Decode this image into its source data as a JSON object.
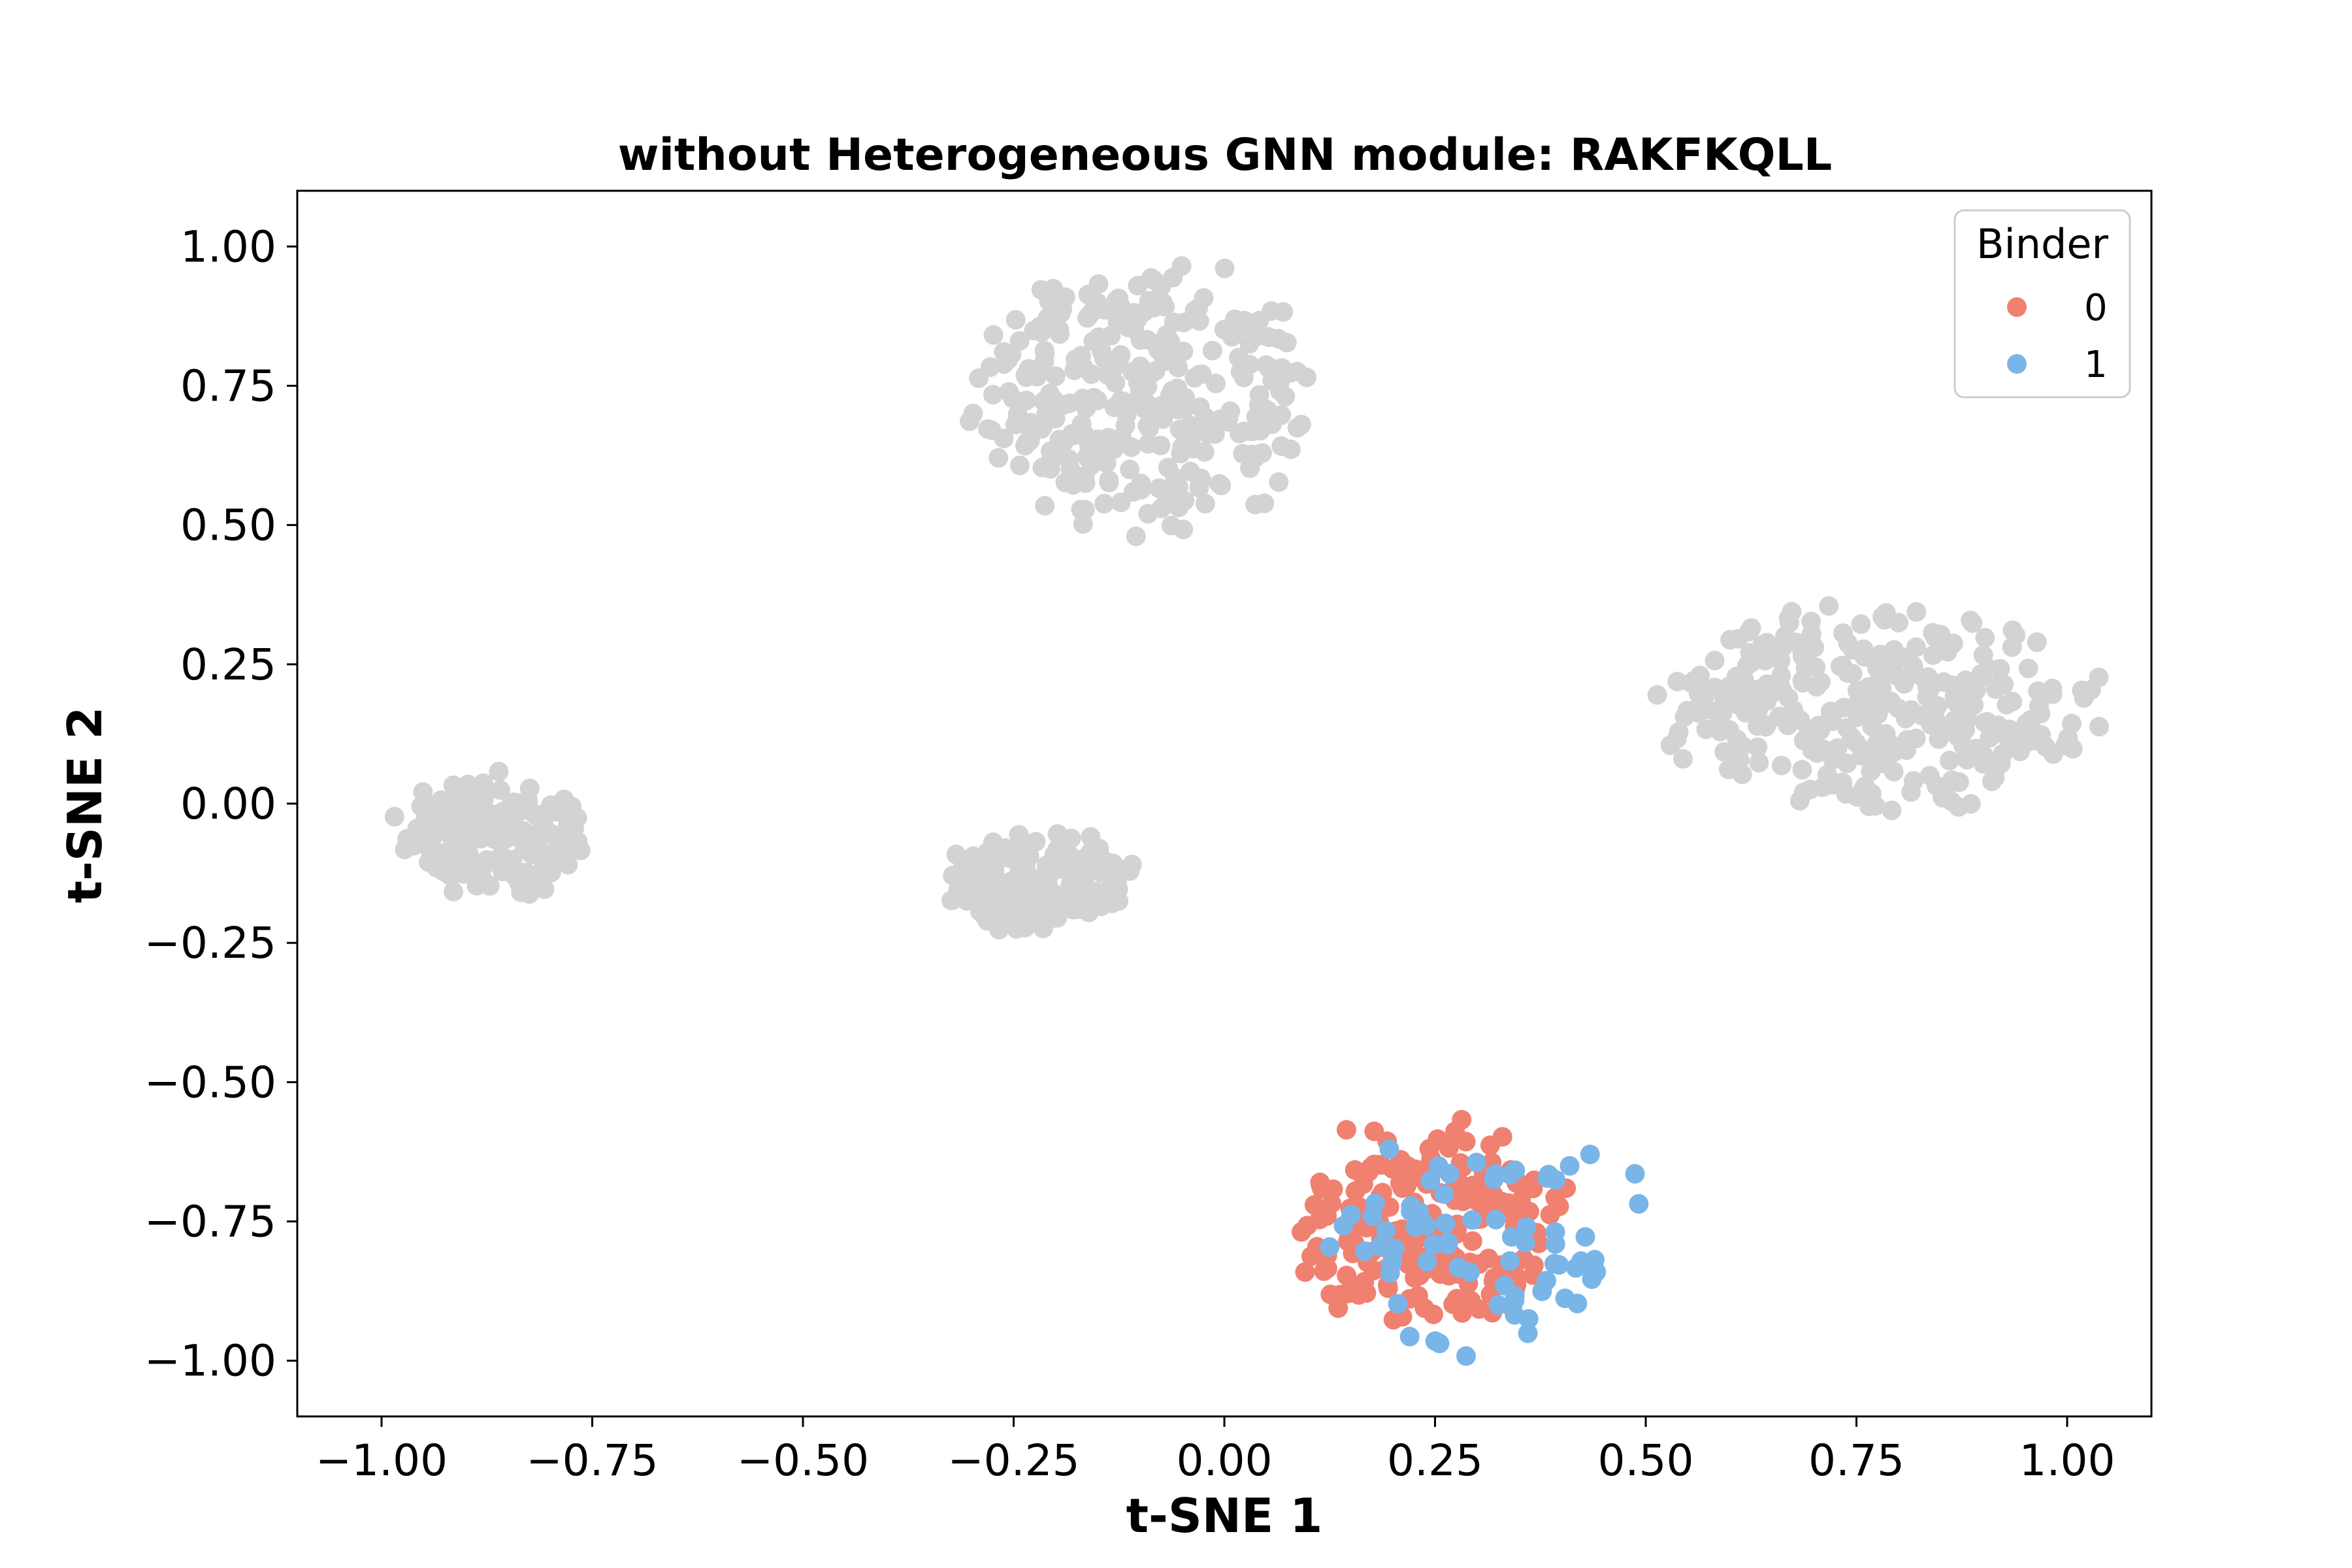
{
  "chart_data": {
    "type": "scatter",
    "title": "without Heterogeneous GNN module: RAKFKQLL",
    "xlabel": "t-SNE 1",
    "ylabel": "t-SNE 2",
    "xlim": [
      -1.1,
      1.1
    ],
    "ylim": [
      -1.1,
      1.1
    ],
    "x_ticks": [
      -1.0,
      -0.75,
      -0.5,
      -0.25,
      0.0,
      0.25,
      0.5,
      0.75,
      1.0
    ],
    "x_tick_labels": [
      "−1.00",
      "−0.75",
      "−0.50",
      "−0.25",
      "0.00",
      "0.25",
      "0.50",
      "0.75",
      "1.00"
    ],
    "y_ticks": [
      1.0,
      0.75,
      0.5,
      0.25,
      0.0,
      -0.25,
      -0.5,
      -0.75,
      -1.0
    ],
    "y_tick_labels": [
      "1.00",
      "0.75",
      "0.50",
      "0.25",
      "0.00",
      "−0.25",
      "−0.50",
      "−0.75",
      "−1.00"
    ],
    "grid": false,
    "legend": {
      "title": "Binder",
      "position": "top-right",
      "entries": [
        {
          "label": "0",
          "color": "#f08070"
        },
        {
          "label": "1",
          "color": "#7ab5e8"
        }
      ]
    },
    "background_color": "#d3d3d3",
    "clusters": [
      {
        "group": "background",
        "center": [
          -0.87,
          -0.06
        ],
        "spread": [
          0.07,
          0.065
        ],
        "n": 160
      },
      {
        "group": "background",
        "center": [
          -0.22,
          -0.14
        ],
        "spread": [
          0.065,
          0.055
        ],
        "n": 150
      },
      {
        "group": "background",
        "center": [
          -0.09,
          0.73
        ],
        "spread": [
          0.12,
          0.14
        ],
        "n": 320
      },
      {
        "group": "background",
        "center": [
          0.77,
          0.17
        ],
        "spread": [
          0.15,
          0.11
        ],
        "n": 330
      },
      {
        "group": "0",
        "center": [
          0.24,
          -0.76
        ],
        "spread": [
          0.1,
          0.11
        ],
        "n": 210
      },
      {
        "group": "1",
        "center": [
          0.32,
          -0.78
        ],
        "spread": [
          0.12,
          0.12
        ],
        "n": 75
      }
    ],
    "series": [
      {
        "name": "0",
        "color": "#f08070"
      },
      {
        "name": "1",
        "color": "#7ab5e8"
      }
    ]
  }
}
